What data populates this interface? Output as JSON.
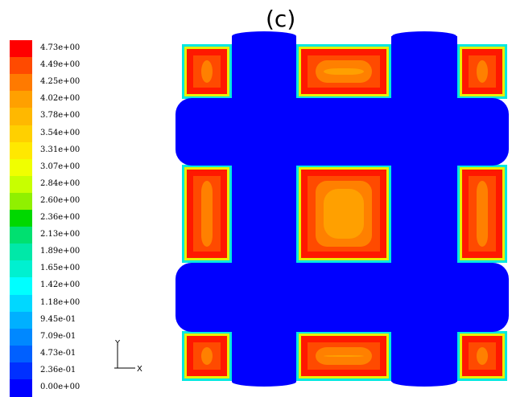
{
  "panel_label": "(c)",
  "colorbar": {
    "ticks": [
      "4.73e+00",
      "4.49e+00",
      "4.25e+00",
      "4.02e+00",
      "3.78e+00",
      "3.54e+00",
      "3.31e+00",
      "3.07e+00",
      "2.84e+00",
      "2.60e+00",
      "2.36e+00",
      "2.13e+00",
      "1.89e+00",
      "1.65e+00",
      "1.42e+00",
      "1.18e+00",
      "9.45e-01",
      "7.09e-01",
      "4.73e-01",
      "2.36e-01",
      "0.00e+00"
    ],
    "colors": [
      "#ff0000",
      "#ff4a00",
      "#ff7a00",
      "#ffa000",
      "#ffb800",
      "#ffd000",
      "#ffe800",
      "#f0ff00",
      "#c8ff00",
      "#90f000",
      "#00d800",
      "#00e070",
      "#00e8a8",
      "#00f0d0",
      "#00ffff",
      "#00d8ff",
      "#00b0ff",
      "#0088ff",
      "#0060ff",
      "#0030ff",
      "#0000ff"
    ]
  },
  "axis_triad": {
    "x_label": "X",
    "y_label": "Y"
  },
  "chart_data": {
    "type": "heatmap",
    "title": "(c)",
    "colorbar_min": 0.0,
    "colorbar_max": 4.73,
    "field_description_values": {
      "channel_value": 0.0,
      "cell_edge_value": 4.73,
      "cell_center_value": 4.02
    },
    "grid": "3x3 periodic cells separated by cross-shaped zero-value channels"
  }
}
